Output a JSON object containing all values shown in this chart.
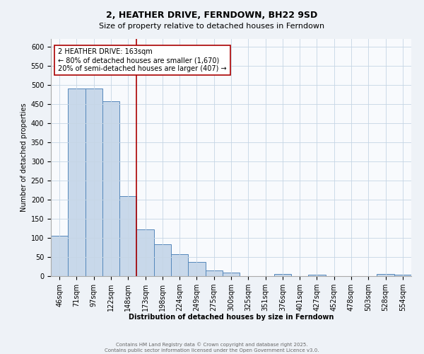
{
  "title": "2, HEATHER DRIVE, FERNDOWN, BH22 9SD",
  "subtitle": "Size of property relative to detached houses in Ferndown",
  "xlabel": "Distribution of detached houses by size in Ferndown",
  "ylabel": "Number of detached properties",
  "bar_labels": [
    "46sqm",
    "71sqm",
    "97sqm",
    "122sqm",
    "148sqm",
    "173sqm",
    "198sqm",
    "224sqm",
    "249sqm",
    "275sqm",
    "300sqm",
    "325sqm",
    "351sqm",
    "376sqm",
    "401sqm",
    "427sqm",
    "452sqm",
    "478sqm",
    "503sqm",
    "528sqm",
    "554sqm"
  ],
  "bar_values": [
    105,
    490,
    490,
    458,
    210,
    123,
    83,
    58,
    37,
    15,
    10,
    0,
    0,
    5,
    0,
    3,
    0,
    0,
    0,
    5,
    3
  ],
  "bar_color": "#c8d8ea",
  "bar_edge_color": "#5588bb",
  "vline_color": "#aa0000",
  "ylim": [
    0,
    620
  ],
  "yticks": [
    0,
    50,
    100,
    150,
    200,
    250,
    300,
    350,
    400,
    450,
    500,
    550,
    600
  ],
  "annotation_title": "2 HEATHER DRIVE: 163sqm",
  "annotation_line1": "← 80% of detached houses are smaller (1,670)",
  "annotation_line2": "20% of semi-detached houses are larger (407) →",
  "footer1": "Contains HM Land Registry data © Crown copyright and database right 2025.",
  "footer2": "Contains public sector information licensed under the Open Government Licence v3.0.",
  "background_color": "#eef2f7",
  "plot_bg_color": "#f8fafd",
  "grid_color": "#c5d5e5",
  "title_fontsize": 9,
  "subtitle_fontsize": 8,
  "axis_label_fontsize": 7,
  "tick_fontsize": 7,
  "annotation_fontsize": 7,
  "footer_fontsize": 5
}
